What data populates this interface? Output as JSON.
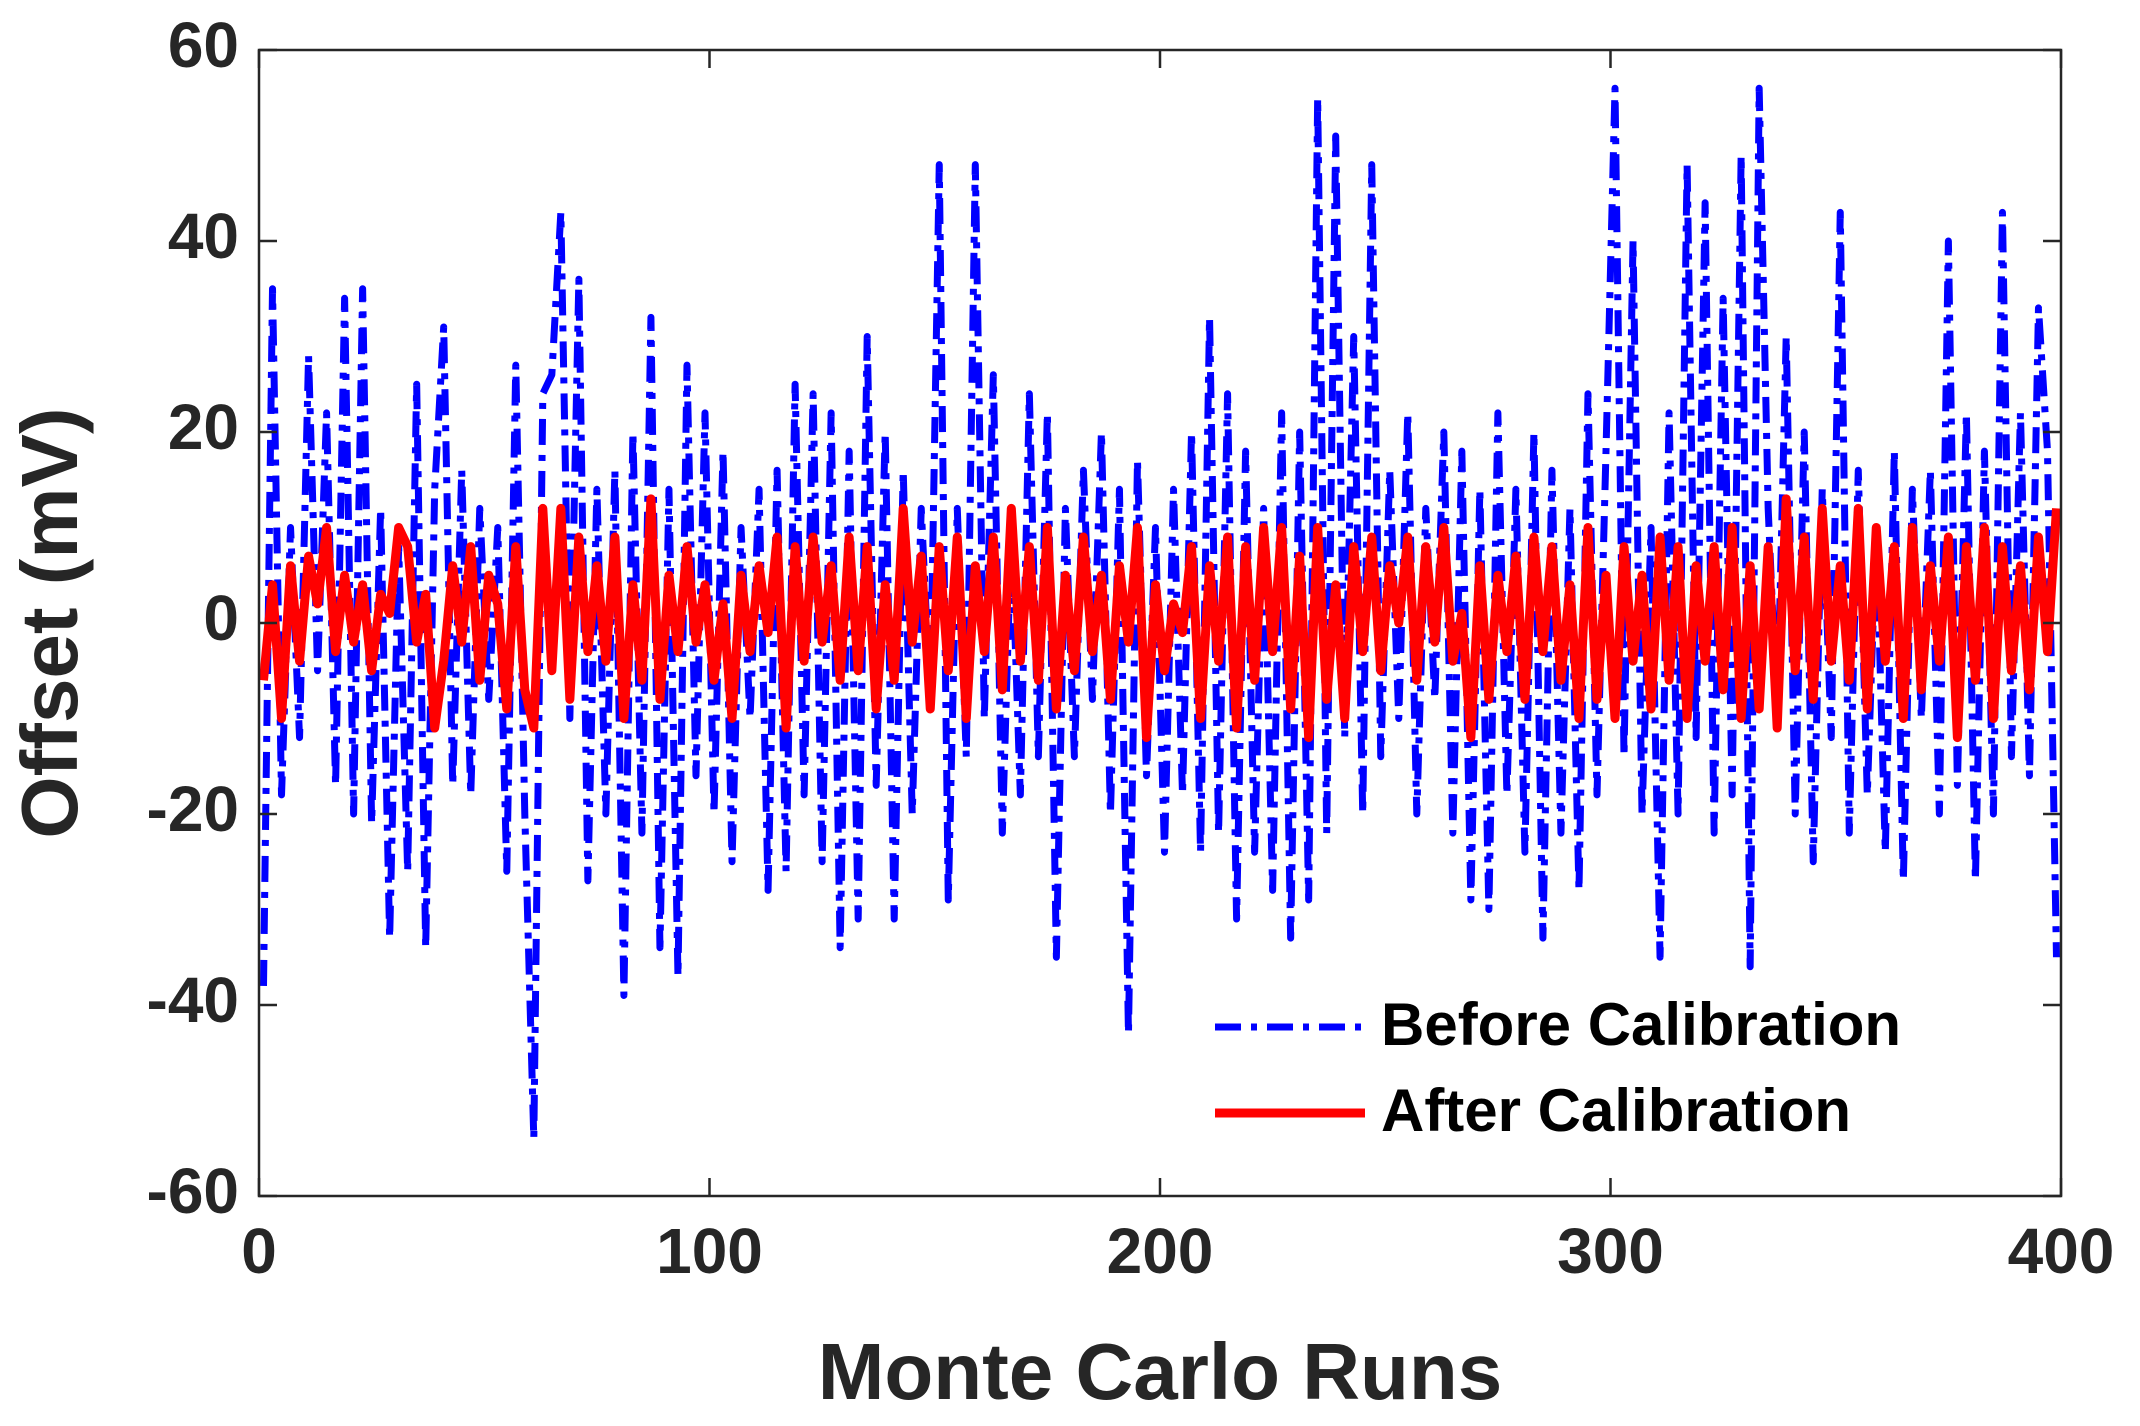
{
  "chart_data": {
    "type": "line",
    "xlabel": "Monte Carlo Runs",
    "ylabel": "Offset (mV)",
    "xlim": [
      0,
      400
    ],
    "ylim": [
      -60,
      60
    ],
    "xticks": [
      0,
      100,
      200,
      300,
      400
    ],
    "yticks": [
      -60,
      -40,
      -20,
      0,
      20,
      40,
      60
    ],
    "legend": "lower right",
    "x": [
      1,
      3,
      5,
      7,
      9,
      11,
      13,
      15,
      17,
      19,
      21,
      23,
      25,
      27,
      29,
      31,
      33,
      35,
      37,
      39,
      41,
      43,
      45,
      47,
      49,
      51,
      53,
      55,
      57,
      59,
      61,
      63,
      65,
      67,
      69,
      71,
      73,
      75,
      77,
      79,
      81,
      83,
      85,
      87,
      89,
      91,
      93,
      95,
      97,
      99,
      101,
      103,
      105,
      107,
      109,
      111,
      113,
      115,
      117,
      119,
      121,
      123,
      125,
      127,
      129,
      131,
      133,
      135,
      137,
      139,
      141,
      143,
      145,
      147,
      149,
      151,
      153,
      155,
      157,
      159,
      161,
      163,
      165,
      167,
      169,
      171,
      173,
      175,
      177,
      179,
      181,
      183,
      185,
      187,
      189,
      191,
      193,
      195,
      197,
      199,
      201,
      203,
      205,
      207,
      209,
      211,
      213,
      215,
      217,
      219,
      221,
      223,
      225,
      227,
      229,
      231,
      233,
      235,
      237,
      239,
      241,
      243,
      245,
      247,
      249,
      251,
      253,
      255,
      257,
      259,
      261,
      263,
      265,
      267,
      269,
      271,
      273,
      275,
      277,
      279,
      281,
      283,
      285,
      287,
      289,
      291,
      293,
      295,
      297,
      299,
      301,
      303,
      305,
      307,
      309,
      311,
      313,
      315,
      317,
      319,
      321,
      323,
      325,
      327,
      329,
      331,
      333,
      335,
      337,
      339,
      341,
      343,
      345,
      347,
      349,
      351,
      353,
      355,
      357,
      359,
      361,
      363,
      365,
      367,
      369,
      371,
      373,
      375,
      377,
      379,
      381,
      383,
      385,
      387,
      389,
      391,
      393,
      395,
      397,
      399
    ],
    "series": [
      {
        "name": "Before Calibration",
        "color": "#0000ff",
        "dash": "dash-dot",
        "values": [
          -38,
          35,
          -18,
          10,
          -12,
          28,
          -5,
          22,
          -17,
          34,
          -20,
          35,
          -21,
          12,
          -33,
          8,
          -26,
          25,
          -34,
          14,
          31,
          -17,
          16,
          -18,
          12,
          -8,
          10,
          -26,
          27,
          -20,
          -54,
          24,
          26,
          43,
          -10,
          36,
          -27,
          14,
          -20,
          16,
          -39,
          20,
          -22,
          32,
          -34,
          14,
          -37,
          27,
          -16,
          22,
          -20,
          18,
          -25,
          10,
          -10,
          14,
          -28,
          16,
          -26,
          25,
          -18,
          24,
          -25,
          22,
          -34,
          18,
          -31,
          30,
          -17,
          20,
          -31,
          16,
          -20,
          12,
          -8,
          48,
          -29,
          12,
          -14,
          48,
          -10,
          26,
          -22,
          10,
          -18,
          24,
          -14,
          22,
          -35,
          12,
          -14,
          16,
          -8,
          20,
          -20,
          14,
          -43,
          17,
          -16,
          10,
          -24,
          14,
          -18,
          20,
          -24,
          32,
          -22,
          24,
          -31,
          18,
          -24,
          12,
          -28,
          22,
          -33,
          20,
          -29,
          55,
          -22,
          51,
          -12,
          30,
          -20,
          48,
          -14,
          16,
          -10,
          22,
          -20,
          12,
          -8,
          20,
          -22,
          18,
          -29,
          14,
          -30,
          22,
          -18,
          14,
          -24,
          20,
          -33,
          16,
          -22,
          12,
          -28,
          24,
          -18,
          18,
          56,
          -14,
          40,
          -20,
          10,
          -35,
          22,
          -20,
          48,
          -12,
          44,
          -22,
          34,
          -18,
          49,
          -36,
          56,
          12,
          -10,
          30,
          -20,
          20,
          -25,
          14,
          -12,
          43,
          -22,
          16,
          -18,
          10,
          -24,
          18,
          -27,
          14,
          -10,
          16,
          -20,
          40,
          -17,
          22,
          -27,
          18,
          -20,
          43,
          -14,
          22,
          -16,
          33,
          18,
          -35
        ]
      },
      {
        "name": "After Calibration",
        "color": "#ff0000",
        "dash": "solid",
        "values": [
          -6,
          4,
          -10,
          6,
          -4,
          7,
          2,
          10,
          -3,
          5,
          -2,
          4,
          -5,
          3,
          1,
          10,
          8,
          -2,
          3,
          -11,
          -4,
          6,
          -2,
          8,
          -6,
          5,
          2,
          -9,
          8,
          -7,
          -11,
          12,
          -5,
          12,
          -8,
          9,
          -3,
          6,
          -4,
          9,
          -10,
          4,
          -6,
          13,
          -8,
          5,
          -3,
          8,
          -2,
          4,
          -6,
          2,
          -10,
          5,
          -3,
          6,
          -1,
          9,
          -11,
          8,
          -4,
          9,
          -2,
          6,
          -6,
          9,
          -5,
          8,
          -9,
          4,
          -6,
          12,
          -2,
          7,
          -9,
          8,
          -5,
          9,
          -10,
          6,
          -3,
          9,
          -7,
          12,
          -4,
          8,
          -6,
          10,
          -9,
          5,
          -5,
          9,
          -3,
          5,
          -8,
          6,
          -2,
          10,
          -12,
          4,
          -5,
          2,
          -1,
          8,
          -10,
          6,
          -4,
          9,
          -11,
          8,
          -6,
          10,
          -3,
          10,
          -9,
          7,
          -12,
          10,
          -8,
          4,
          -10,
          8,
          -3,
          9,
          -5,
          6,
          0,
          9,
          -6,
          8,
          -2,
          10,
          -4,
          1,
          -12,
          6,
          -8,
          5,
          -3,
          7,
          -8,
          9,
          -3,
          8,
          -6,
          4,
          -10,
          10,
          -8,
          5,
          -10,
          8,
          -4,
          5,
          -9,
          9,
          -6,
          8,
          -10,
          6,
          -4,
          8,
          -7,
          10,
          -10,
          6,
          -9,
          8,
          -11,
          13,
          -5,
          9,
          -8,
          12,
          -4,
          6,
          -6,
          12,
          -9,
          10,
          -4,
          8,
          -10,
          10,
          -7,
          6,
          -4,
          9,
          -12,
          8,
          -6,
          10,
          -10,
          8,
          -5,
          6,
          -7,
          9,
          -3,
          12
        ]
      }
    ]
  }
}
